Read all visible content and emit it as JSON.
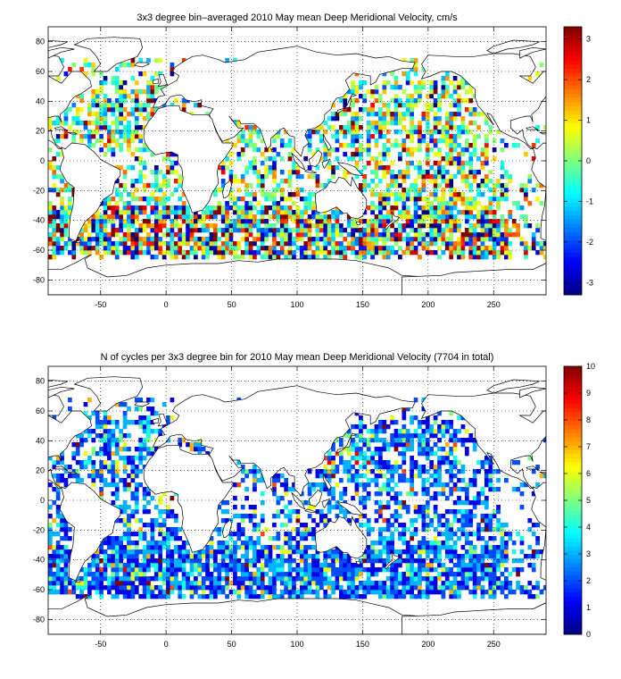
{
  "figure": {
    "panels": [
      {
        "title": "3x3 degree bin–averaged 2010 May mean Deep Meridional Velocity, cm/s",
        "colorbar_ticks": [
          "3",
          "2",
          "1",
          "0",
          "-1",
          "-2",
          "-3"
        ]
      },
      {
        "title": "N of cycles per 3x3 degree bin for 2010 May mean Deep Meridional Velocity (7704 in total)",
        "colorbar_ticks": [
          "10",
          "9",
          "8",
          "7",
          "6",
          "5",
          "4",
          "3",
          "2",
          "1",
          "0"
        ]
      }
    ]
  },
  "chart_data": [
    {
      "type": "heatmap",
      "title": "3x3 degree bin–averaged 2010 May mean Deep Meridional Velocity, cm/s",
      "xlabel": "",
      "ylabel": "",
      "xlim": [
        -90,
        290
      ],
      "ylim": [
        -90,
        90
      ],
      "x_ticks": [
        -50,
        0,
        50,
        100,
        150,
        200,
        250
      ],
      "y_ticks": [
        80,
        60,
        40,
        20,
        0,
        -20,
        -40,
        -60,
        -80
      ],
      "bin_size_deg": 3,
      "colorbar": {
        "range": [
          -3.3,
          3.3
        ],
        "ticks": [
          3,
          2,
          1,
          0,
          -1,
          -2,
          -3
        ],
        "colormap": "jet"
      },
      "grid": true,
      "grid_style": "dotted",
      "coastlines": true
    },
    {
      "type": "heatmap",
      "title": "N of cycles per 3x3 degree bin for 2010 May mean Deep Meridional Velocity (7704 in total)",
      "xlabel": "",
      "ylabel": "",
      "xlim": [
        -90,
        290
      ],
      "ylim": [
        -90,
        90
      ],
      "x_ticks": [
        -50,
        0,
        50,
        100,
        150,
        200,
        250
      ],
      "y_ticks": [
        80,
        60,
        40,
        20,
        0,
        -20,
        -40,
        -60,
        -80
      ],
      "bin_size_deg": 3,
      "total_cycles": 7704,
      "colorbar": {
        "range": [
          0,
          10
        ],
        "ticks": [
          10,
          9,
          8,
          7,
          6,
          5,
          4,
          3,
          2,
          1,
          0
        ],
        "colormap": "jet"
      },
      "grid": true,
      "grid_style": "dotted",
      "coastlines": true
    }
  ]
}
